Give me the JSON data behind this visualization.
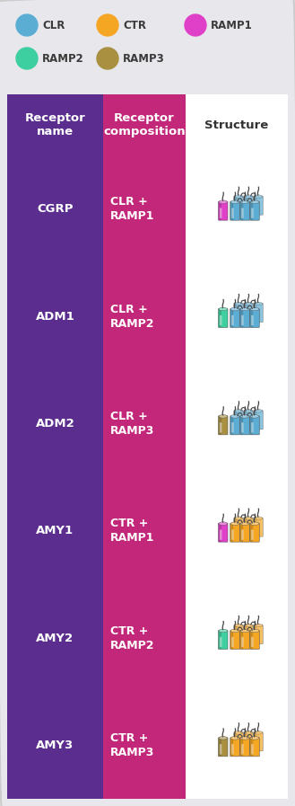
{
  "col1_color": "#5B2D8E",
  "col2_color": "#C2277A",
  "background_color": "#E8E8EC",
  "colors": {
    "CLR": "#5BADD4",
    "CTR": "#F5A623",
    "RAMP1": "#E040C8",
    "RAMP2": "#3ECFA0",
    "RAMP3": "#A89040"
  },
  "legend_row1": [
    {
      "label": "CLR",
      "color": "#5BADD4"
    },
    {
      "label": "CTR",
      "color": "#F5A623"
    },
    {
      "label": "RAMP1",
      "color": "#E040C8"
    }
  ],
  "legend_row2": [
    {
      "label": "RAMP2",
      "color": "#3ECFA0"
    },
    {
      "label": "RAMP3",
      "color": "#A89040"
    }
  ],
  "rows": [
    {
      "name": "CGRP",
      "composition": "CLR +\nRAMP1",
      "receptor": "CLR",
      "ramp": "RAMP1"
    },
    {
      "name": "ADM1",
      "composition": "CLR +\nRAMP2",
      "receptor": "CLR",
      "ramp": "RAMP2"
    },
    {
      "name": "ADM2",
      "composition": "CLR +\nRAMP3",
      "receptor": "CLR",
      "ramp": "RAMP3"
    },
    {
      "name": "AMY1",
      "composition": "CTR +\nRAMP1",
      "receptor": "CTR",
      "ramp": "RAMP1"
    },
    {
      "name": "AMY2",
      "composition": "CTR +\nRAMP2",
      "receptor": "CTR",
      "ramp": "RAMP2"
    },
    {
      "name": "AMY3",
      "composition": "CTR +\nRAMP3",
      "receptor": "CTR",
      "ramp": "RAMP3"
    }
  ]
}
